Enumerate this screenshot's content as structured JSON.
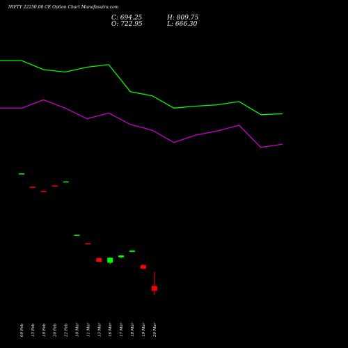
{
  "header": {
    "title": "NIFTY 22250.00  CE Option  Chart Munafasutra.com",
    "close": "C: 694.25",
    "high": "H: 809.75",
    "open": "O: 722.95",
    "low": "L: 666.30"
  },
  "colors": {
    "background": "#000000",
    "bullish": "#00ff00",
    "bearish": "#ff0000",
    "upper_band": "#00ff00",
    "lower_band": "#cc00cc",
    "text": "#ffffff"
  },
  "chart_data": {
    "type": "candlestick",
    "categories": [
      "09 Feb",
      "13 Feb",
      "19 Feb",
      "20 Feb",
      "22 Feb",
      "10 Mar",
      "11 Mar",
      "13 Mar",
      "16 Mar",
      "17 Mar",
      "18 Mar",
      "19 Mar",
      "20 Mar"
    ],
    "candles": [
      {
        "date": "09 Feb",
        "open": 1410,
        "high": 1411,
        "low": 1409,
        "close": 1411,
        "dir": "up"
      },
      {
        "date": "13 Feb",
        "open": 1330,
        "high": 1331,
        "low": 1328,
        "close": 1330,
        "dir": "down"
      },
      {
        "date": "19 Feb",
        "open": 1303,
        "high": 1304,
        "low": 1300,
        "close": 1301,
        "dir": "down"
      },
      {
        "date": "20 Feb",
        "open": 1337,
        "high": 1338,
        "low": 1335,
        "close": 1336,
        "dir": "down"
      },
      {
        "date": "22 Feb",
        "open": 1361,
        "high": 1362,
        "low": 1360,
        "close": 1362,
        "dir": "up"
      },
      {
        "date": "10 Mar",
        "open": 1035,
        "high": 1036,
        "low": 1034,
        "close": 1036,
        "dir": "up"
      },
      {
        "date": "11 Mar",
        "open": 985,
        "high": 986,
        "low": 983,
        "close": 984,
        "dir": "down"
      },
      {
        "date": "13 Mar",
        "open": 894,
        "high": 895,
        "low": 870,
        "close": 872,
        "dir": "down"
      },
      {
        "date": "16 Mar",
        "open": 866,
        "high": 900,
        "low": 857,
        "close": 896,
        "dir": "up"
      },
      {
        "date": "17 Mar",
        "open": 899,
        "high": 912,
        "low": 893,
        "close": 910,
        "dir": "up"
      },
      {
        "date": "18 Mar",
        "open": 932,
        "high": 942,
        "low": 930,
        "close": 940,
        "dir": "up"
      },
      {
        "date": "19 Mar",
        "open": 851,
        "high": 857,
        "low": 825,
        "close": 830,
        "dir": "down"
      },
      {
        "date": "20 Mar",
        "open": 722.95,
        "high": 809.75,
        "low": 666.3,
        "close": 694.25,
        "dir": "down"
      }
    ],
    "upper_band": [
      2100,
      2100,
      2045,
      2030,
      2060,
      2075,
      1910,
      1885,
      1810,
      1822,
      1830,
      1850,
      1770,
      1775
    ],
    "lower_band": [
      1810,
      1810,
      1860,
      1810,
      1745,
      1780,
      1710,
      1675,
      1600,
      1645,
      1670,
      1705,
      1570,
      1590
    ],
    "band_x_positions": 14,
    "ylim": [
      600,
      2300
    ]
  }
}
